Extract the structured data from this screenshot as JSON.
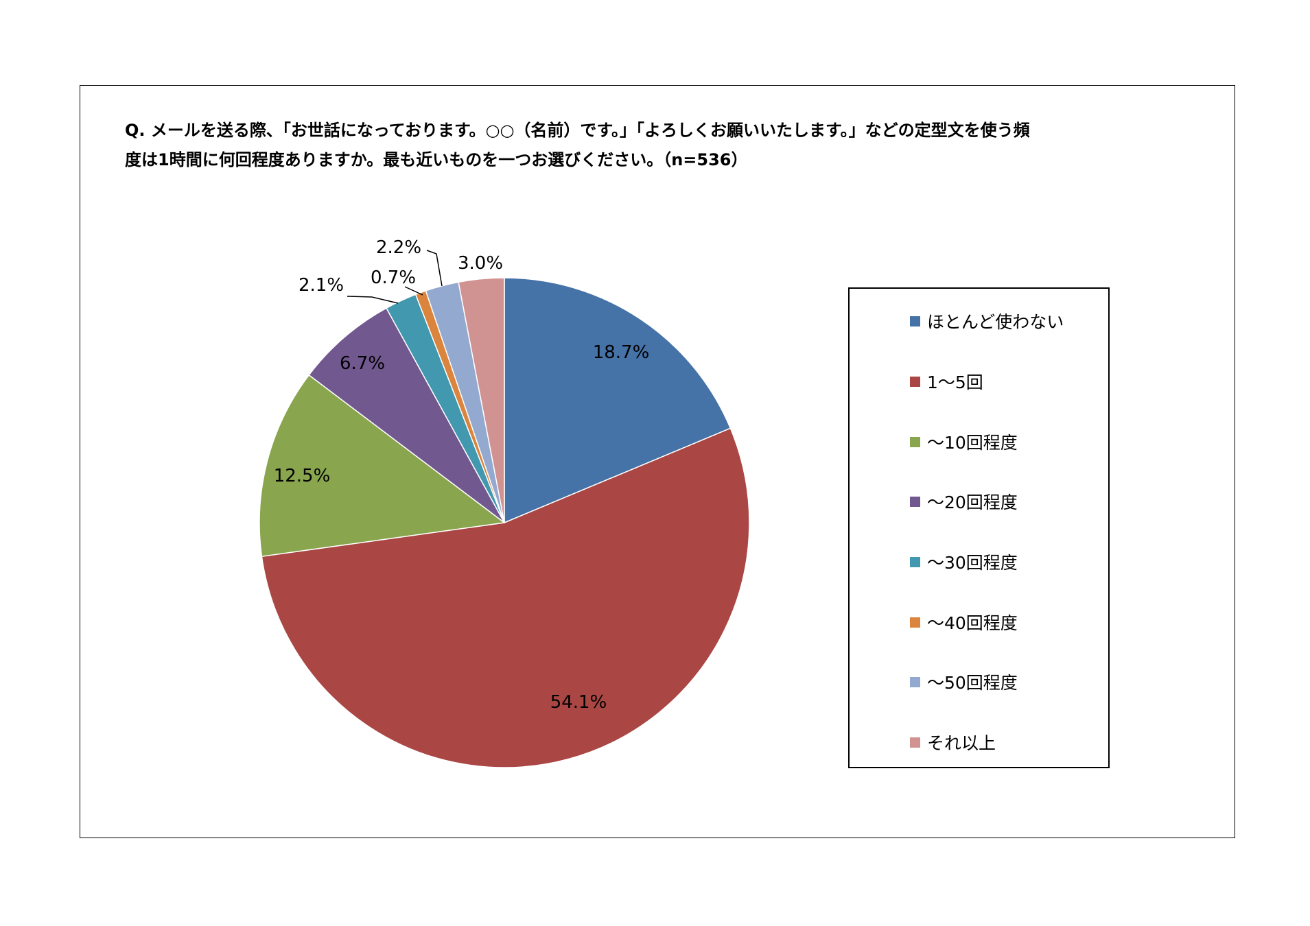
{
  "title": {
    "line1": "Q. メールを送る際、「お世話になっております。○○（名前）です。」「よろしくお願いいたします。」などの定型文を使う頻",
    "line2": "度は1時間に何回程度ありますか。最も近いものを一つお選びください。（n=536）"
  },
  "chart_data": {
    "type": "pie",
    "title": "Q. メールを送る際、「お世話になっております。○○（名前）です。」「よろしくお願いいたします。」などの定型文を使う頻度は1時間に何回程度ありますか。最も近いものを一つお選びください。（n=536）",
    "start": "12 o'clock, clockwise",
    "legend_position": "right",
    "slices": [
      {
        "label": "ほとんど使わない",
        "value": 18.7,
        "display": "18.7%",
        "color": "#4572A7"
      },
      {
        "label": "1～5回",
        "value": 54.1,
        "display": "54.1%",
        "color": "#AA4643"
      },
      {
        "label": "～10回程度",
        "value": 12.5,
        "display": "12.5%",
        "color": "#89A54E"
      },
      {
        "label": "～20回程度",
        "value": 6.7,
        "display": "6.7%",
        "color": "#71588F"
      },
      {
        "label": "～30回程度",
        "value": 2.1,
        "display": "2.1%",
        "color": "#4198AF"
      },
      {
        "label": "～40回程度",
        "value": 0.7,
        "display": "0.7%",
        "color": "#DB843D"
      },
      {
        "label": "～50回程度",
        "value": 2.2,
        "display": "2.2%",
        "color": "#93A9CF"
      },
      {
        "label": "それ以上",
        "value": 3.0,
        "display": "3.0%",
        "color": "#D19392"
      }
    ]
  }
}
